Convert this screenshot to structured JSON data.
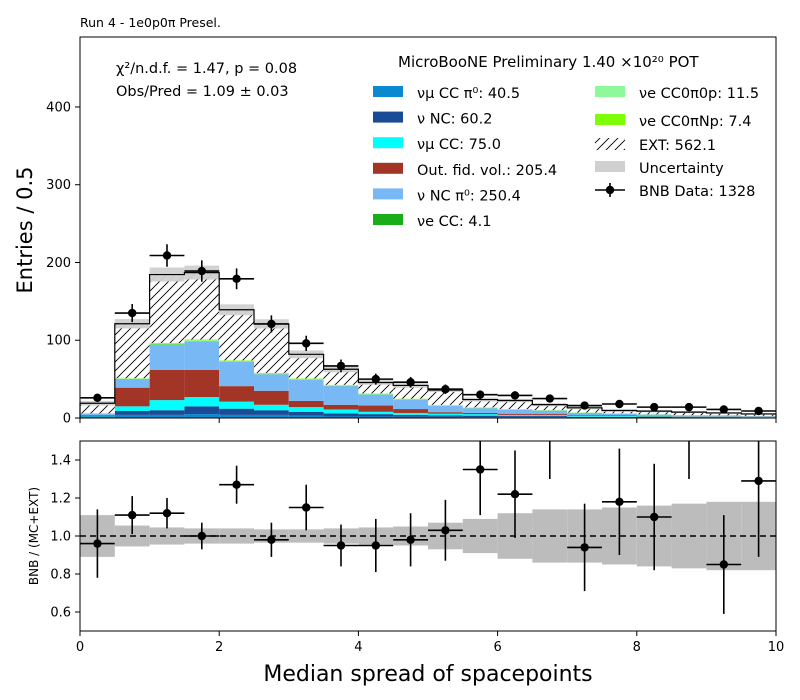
{
  "chart_data": [
    {
      "type": "bar",
      "stacked": true,
      "run_label": "Run 4 - 1e0p0π Presel.",
      "title": "MicroBooNE Preliminary 1.40 ×10²⁰ POT",
      "stats_line1": "χ²/n.d.f. = 1.47, p = 0.08",
      "stats_line2": "Obs/Pred = 1.09 ± 0.03",
      "ylabel": "Entries / 0.5",
      "xlabel": "",
      "xlim": [
        0,
        10
      ],
      "ylim": [
        0,
        490
      ],
      "yticks": [
        "0",
        "100",
        "200",
        "300",
        "400"
      ],
      "yticks_values": [
        0,
        100,
        200,
        300,
        400
      ],
      "bin_edges": [
        0,
        0.5,
        1,
        1.5,
        2,
        2.5,
        3,
        3.5,
        4,
        4.5,
        5,
        5.5,
        6,
        6.5,
        7,
        7.5,
        8,
        8.5,
        9,
        9.5,
        10
      ],
      "series": [
        {
          "key": "numu_cc_pi0",
          "name": "νμ CC π⁰: 40.5",
          "color": "#0a88d0",
          "values": [
            1,
            4,
            4,
            5,
            4,
            4,
            3,
            2,
            2,
            1.5,
            1.5,
            1,
            1,
            1,
            0.5,
            0.5,
            0.5,
            0.5,
            0.5,
            0.3
          ]
        },
        {
          "key": "nu_nc",
          "name": "ν NC: 60.2",
          "color": "#1a4b96",
          "values": [
            1,
            5,
            6,
            10,
            8,
            6,
            5,
            4,
            3,
            2.5,
            2,
            2,
            1.5,
            1.5,
            1,
            1,
            0.8,
            0.6,
            0.6,
            0.5
          ]
        },
        {
          "key": "numu_cc",
          "name": "νμ CC: 75.0",
          "color": "#00ffff",
          "values": [
            1,
            6,
            13,
            12,
            9,
            7,
            6,
            5,
            3,
            2.5,
            2,
            2,
            1.5,
            1.5,
            1,
            1,
            0.8,
            0.6,
            0.6,
            0.5
          ]
        },
        {
          "key": "out_fid",
          "name": "Out. fid. vol.: 205.4",
          "color": "#a23526",
          "values": [
            1,
            24,
            39,
            35,
            20,
            18,
            8,
            6,
            8,
            5,
            2,
            1.5,
            1.5,
            1.5,
            1,
            1,
            0.8,
            0.5,
            0.5,
            0.3
          ]
        },
        {
          "key": "nu_nc_pi0",
          "name": "ν NC π⁰: 250.4",
          "color": "#78b8f4",
          "values": [
            2,
            11,
            32,
            36,
            31,
            21,
            27,
            24,
            14,
            12,
            8,
            6,
            5,
            4,
            3,
            2,
            1.5,
            1,
            1,
            0.8
          ]
        },
        {
          "key": "nue_cc",
          "name": "νe CC: 4.1",
          "color": "#19ad19",
          "values": [
            0,
            0.3,
            0.5,
            0.5,
            0.4,
            0.3,
            0.3,
            0.2,
            0.2,
            0.2,
            0.2,
            0.2,
            0.2,
            0.1,
            0.1,
            0.1,
            0.1,
            0.1,
            0.1,
            0.1
          ]
        },
        {
          "key": "nue_cc0p",
          "name": "νe CC0π0p: 11.5",
          "color": "#8ef99a",
          "values": [
            0,
            0.5,
            1,
            1.5,
            1,
            1,
            1,
            1,
            1,
            0.8,
            0.8,
            0.7,
            0.5,
            0.4,
            0.3,
            0.3,
            0.2,
            0.2,
            0.1,
            0.1
          ]
        },
        {
          "key": "nue_ccnp",
          "name": "νe CC0πNp: 7.4",
          "color": "#7efe06",
          "values": [
            0,
            0.4,
            1,
            1,
            0.8,
            0.7,
            0.6,
            0.5,
            0.5,
            0.4,
            0.4,
            0.3,
            0.3,
            0.2,
            0.2,
            0.2,
            0.1,
            0.1,
            0.1,
            0.1
          ]
        },
        {
          "key": "ext",
          "name": "EXT: 562.1",
          "color": "#ffffff",
          "hatch": true,
          "values": [
            13,
            70,
            88,
            86,
            65,
            63,
            31,
            20,
            14,
            17,
            19,
            10,
            11,
            7,
            6,
            3.5,
            4,
            4,
            3,
            2.5
          ]
        }
      ],
      "uncertainty": {
        "name": "Uncertainty",
        "color": "#d0d0d0",
        "values": [
          3,
          6,
          9,
          9,
          7,
          6,
          5,
          4,
          3,
          3,
          2.5,
          2.5,
          2.2,
          2,
          1.8,
          1.5,
          1.5,
          1.3,
          1.2,
          1.1
        ]
      },
      "data": {
        "name": "BNB Data: 1328",
        "x": [
          0.25,
          0.75,
          1.25,
          1.75,
          2.25,
          2.75,
          3.25,
          3.75,
          4.25,
          4.75,
          5.25,
          5.75,
          6.25,
          6.75,
          7.25,
          7.75,
          8.25,
          8.75,
          9.25,
          9.75
        ],
        "values": [
          26,
          135,
          209,
          189,
          179,
          121,
          96,
          67,
          50,
          46,
          37,
          30,
          29,
          25,
          16,
          18,
          14,
          14,
          11,
          9
        ]
      }
    },
    {
      "type": "scatter",
      "xlabel": "Median spread of spacepoints",
      "ylabel": "BNB / (MC+EXT)",
      "xlim": [
        0,
        10
      ],
      "ylim": [
        0.5,
        1.5
      ],
      "xticks": [
        "0",
        "2",
        "4",
        "6",
        "8",
        "10"
      ],
      "xticks_values": [
        0,
        2,
        4,
        6,
        8,
        10
      ],
      "yticks": [
        "0.6",
        "0.8",
        "1.0",
        "1.2",
        "1.4"
      ],
      "yticks_values": [
        0.6,
        0.8,
        1.0,
        1.2,
        1.4
      ],
      "reference_line": 1.0,
      "band_halfwidth": [
        0.11,
        0.055,
        0.045,
        0.04,
        0.04,
        0.035,
        0.035,
        0.04,
        0.045,
        0.05,
        0.07,
        0.09,
        0.12,
        0.14,
        0.14,
        0.15,
        0.16,
        0.17,
        0.18,
        0.18
      ],
      "x": [
        0.25,
        0.75,
        1.25,
        1.75,
        2.25,
        2.75,
        3.25,
        3.75,
        4.25,
        4.75,
        5.25,
        5.75,
        6.25,
        6.75,
        7.25,
        7.75,
        8.25,
        8.75,
        9.25,
        9.75
      ],
      "y": [
        0.96,
        1.11,
        1.12,
        1.0,
        1.27,
        0.98,
        1.15,
        0.95,
        0.95,
        0.98,
        1.03,
        1.35,
        1.22,
        1.6,
        0.94,
        1.18,
        1.1,
        1.6,
        0.85,
        1.29
      ],
      "yerr": [
        0.18,
        0.1,
        0.08,
        0.07,
        0.1,
        0.09,
        0.12,
        0.11,
        0.14,
        0.14,
        0.16,
        0.24,
        0.23,
        0.3,
        0.23,
        0.28,
        0.28,
        0.3,
        0.26,
        0.4
      ]
    }
  ]
}
